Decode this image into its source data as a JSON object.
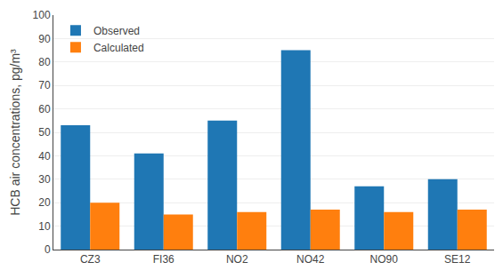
{
  "chart_data": {
    "type": "bar",
    "categories": [
      "CZ3",
      "FI36",
      "NO2",
      "NO42",
      "NO90",
      "SE12"
    ],
    "series": [
      {
        "name": "Observed",
        "values": [
          53,
          41,
          55,
          85,
          27,
          30
        ]
      },
      {
        "name": "Calculated",
        "values": [
          20,
          15,
          16,
          17,
          16,
          17
        ]
      }
    ],
    "ylabel": "HCB air concentrations, pg/m³",
    "ylim": [
      0,
      100
    ],
    "yticks": [
      0,
      10,
      20,
      30,
      40,
      50,
      60,
      70,
      80,
      90,
      100
    ],
    "grid": true,
    "legend": "upper left"
  }
}
